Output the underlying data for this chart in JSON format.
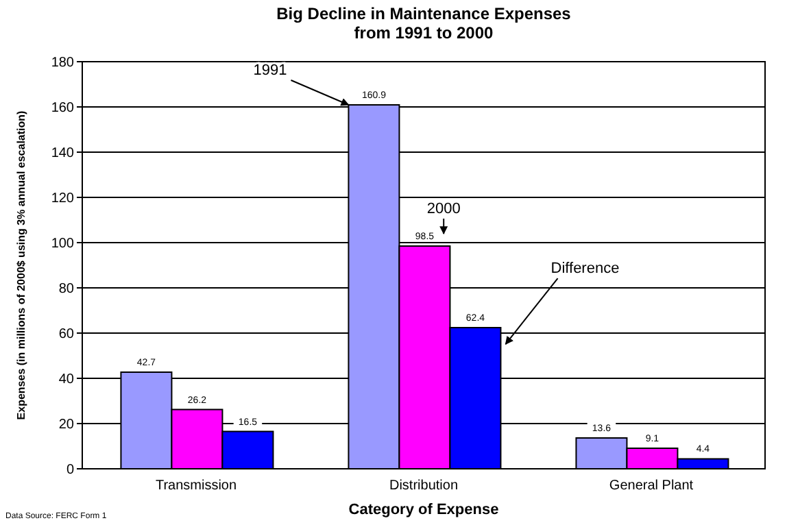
{
  "chart_data": {
    "type": "bar",
    "title": "Big Decline in Maintenance Expenses\nfrom 1991 to 2000",
    "xlabel": "Category of Expense",
    "ylabel": "Expenses (in millions of 2000$ using 3% annual escalation)",
    "categories": [
      "Transmission",
      "Distribution",
      "General Plant"
    ],
    "series": [
      {
        "name": "1991",
        "color": "#9999ff",
        "values": [
          42.7,
          160.9,
          13.6
        ]
      },
      {
        "name": "2000",
        "color": "#ff00ff",
        "values": [
          26.2,
          98.5,
          9.1
        ]
      },
      {
        "name": "Difference",
        "color": "#0000ff",
        "values": [
          16.5,
          62.4,
          4.4
        ]
      }
    ],
    "ylim": [
      0,
      180
    ],
    "yticks": [
      0,
      20,
      40,
      60,
      80,
      100,
      120,
      140,
      160,
      180
    ],
    "grid": "y",
    "data_labels": true,
    "annotations": [
      "Data Source: FERC Form 1"
    ]
  }
}
